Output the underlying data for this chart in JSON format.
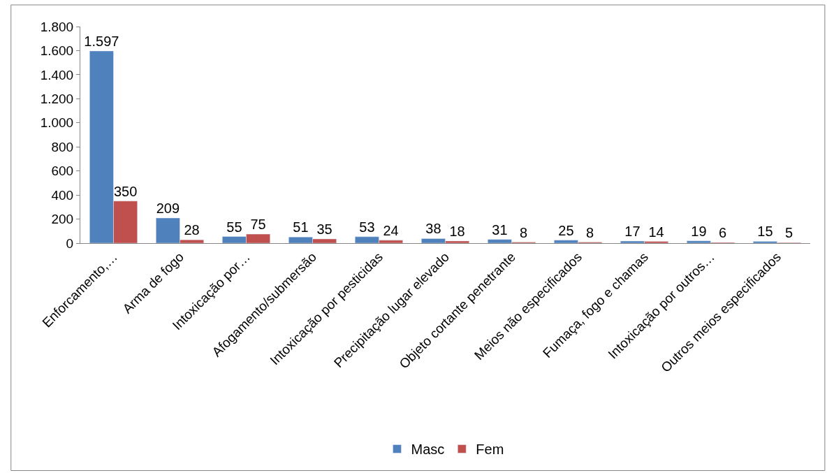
{
  "chart_data": {
    "type": "bar",
    "categories": [
      "Enforcamento,…",
      "Arma de fogo",
      "Intoxicação por…",
      "Afogamento/submersão",
      "Intoxicação por pesticidas",
      "Precipitação lugar elevado",
      "Objeto cortante penetrante",
      "Meios não especificados",
      "Fumaça, fogo e chamas",
      "Intoxicação por outros…",
      "Outros meios especificados"
    ],
    "series": [
      {
        "name": "Masc",
        "color": "#4f81bd",
        "values": [
          1597,
          209,
          55,
          51,
          53,
          38,
          31,
          25,
          17,
          19,
          15
        ],
        "value_labels": [
          "1.597",
          "209",
          "55",
          "51",
          "53",
          "38",
          "31",
          "25",
          "17",
          "19",
          "15"
        ]
      },
      {
        "name": "Fem",
        "color": "#c0504d",
        "values": [
          350,
          28,
          75,
          35,
          24,
          18,
          8,
          8,
          14,
          6,
          5
        ],
        "value_labels": [
          "350",
          "28",
          "75",
          "35",
          "24",
          "18",
          "8",
          "8",
          "14",
          "6",
          "5"
        ]
      }
    ],
    "ylim": [
      0,
      1800
    ],
    "yticks": [
      0,
      200,
      400,
      600,
      800,
      {
        "value": 1000,
        "label": "1.000"
      },
      {
        "value": 1200,
        "label": "1.200"
      },
      {
        "value": 1400,
        "label": "1.400"
      },
      {
        "value": 1600,
        "label": "1.600"
      },
      {
        "value": 1800,
        "label": "1.800"
      }
    ],
    "legend": "bottom"
  }
}
